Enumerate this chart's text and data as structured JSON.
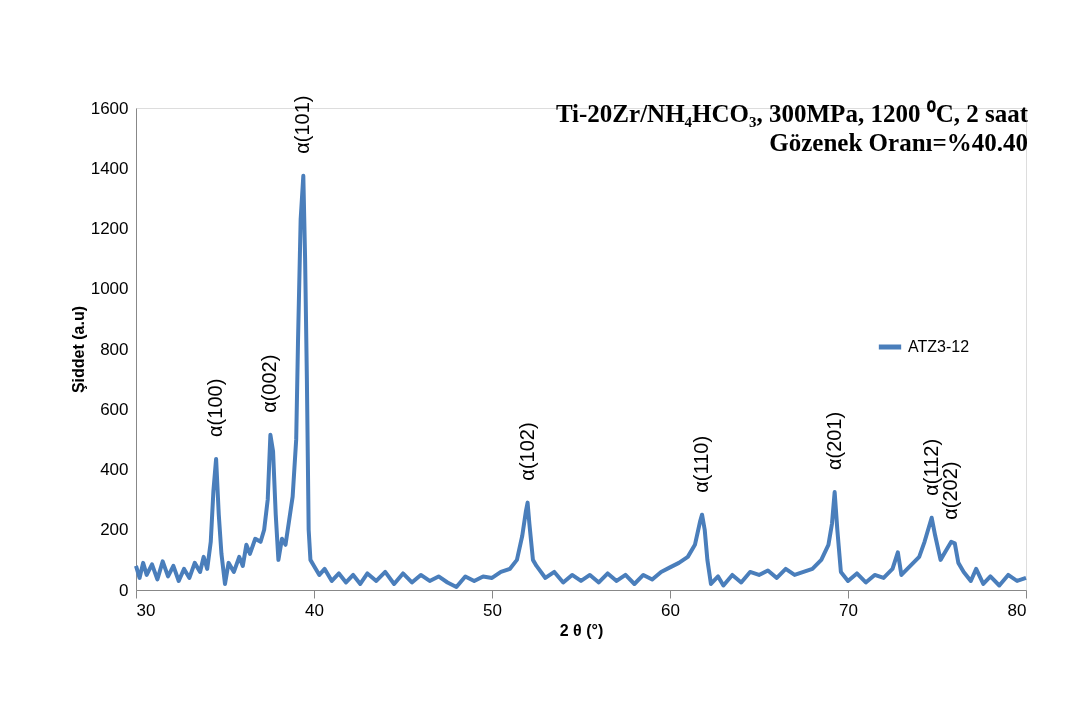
{
  "chart_data": {
    "type": "line",
    "title": "Ti-20Zr/NH₄HCO₃, 300MPa, 1200 ⁰C, 2 saat",
    "subtitle": "Gözenek Oranı=%40.40",
    "xlabel": "2 θ (°)",
    "ylabel": "Şiddet (a.u)",
    "xlim": [
      30,
      80
    ],
    "xticks": [
      30,
      40,
      50,
      60,
      70,
      80
    ],
    "ylim": [
      0,
      1600
    ],
    "yticks": [
      0,
      200,
      400,
      600,
      800,
      1000,
      1200,
      1400,
      1600
    ],
    "grid": false,
    "legend": "right",
    "marker": "none",
    "line_style": "solid",
    "annotations": [
      {
        "text": "α(100)",
        "x": 34.5,
        "y": 435
      },
      {
        "text": "α(002)",
        "x": 37.55,
        "y": 515
      },
      {
        "text": "α(101)",
        "x": 39.4,
        "y": 1375
      },
      {
        "text": "α(102)",
        "x": 52.0,
        "y": 290
      },
      {
        "text": "α(110)",
        "x": 61.8,
        "y": 250
      },
      {
        "text": "α(201)",
        "x": 69.25,
        "y": 325
      },
      {
        "text": "α(112)",
        "x": 74.7,
        "y": 240
      },
      {
        "text": "α(202)",
        "x": 75.8,
        "y": 160
      }
    ],
    "series": [
      {
        "name": "ATZ3-12",
        "color": "#4a7ebb",
        "x": [
          30.0,
          30.2,
          30.4,
          30.6,
          30.9,
          31.2,
          31.5,
          31.8,
          32.1,
          32.4,
          32.7,
          33.0,
          33.3,
          33.6,
          33.8,
          34.0,
          34.2,
          34.35,
          34.5,
          34.65,
          34.8,
          35.0,
          35.2,
          35.5,
          35.8,
          36.0,
          36.2,
          36.4,
          36.7,
          37.0,
          37.2,
          37.4,
          37.55,
          37.7,
          37.85,
          38.0,
          38.2,
          38.4,
          38.6,
          38.8,
          39.0,
          39.1,
          39.25,
          39.4,
          39.5,
          39.6,
          39.7,
          39.8,
          40.0,
          40.3,
          40.6,
          41.0,
          41.4,
          41.8,
          42.2,
          42.6,
          43.0,
          43.5,
          44.0,
          44.5,
          45.0,
          45.5,
          46.0,
          46.5,
          47.0,
          47.5,
          48.0,
          48.5,
          49.0,
          49.5,
          50.0,
          50.5,
          51.0,
          51.4,
          51.7,
          51.9,
          52.0,
          52.1,
          52.3,
          52.5,
          53.0,
          53.5,
          54.0,
          54.5,
          55.0,
          55.5,
          56.0,
          56.5,
          57.0,
          57.5,
          58.0,
          58.5,
          59.0,
          59.5,
          60.0,
          60.5,
          61.0,
          61.4,
          61.7,
          61.8,
          61.95,
          62.1,
          62.3,
          62.7,
          63.0,
          63.5,
          64.0,
          64.5,
          65.0,
          65.5,
          66.0,
          66.5,
          67.0,
          67.5,
          68.0,
          68.5,
          68.9,
          69.1,
          69.25,
          69.4,
          69.6,
          70.0,
          70.5,
          71.0,
          71.5,
          72.0,
          72.5,
          72.8,
          73.0,
          73.5,
          74.0,
          74.3,
          74.6,
          74.7,
          74.9,
          75.2,
          75.5,
          75.8,
          76.0,
          76.2,
          76.5,
          76.9,
          77.2,
          77.6,
          78.0,
          78.5,
          79.0,
          79.5,
          80.0
        ],
        "values": [
          80,
          40,
          90,
          50,
          85,
          35,
          95,
          45,
          80,
          30,
          70,
          40,
          90,
          60,
          110,
          70,
          160,
          330,
          435,
          250,
          120,
          20,
          90,
          60,
          110,
          80,
          150,
          120,
          170,
          160,
          200,
          300,
          515,
          460,
          250,
          100,
          170,
          150,
          230,
          310,
          500,
          820,
          1230,
          1375,
          1100,
          700,
          200,
          100,
          80,
          50,
          70,
          30,
          55,
          25,
          50,
          20,
          55,
          30,
          60,
          20,
          55,
          25,
          50,
          30,
          45,
          25,
          10,
          45,
          30,
          45,
          40,
          60,
          70,
          100,
          180,
          260,
          290,
          220,
          100,
          80,
          40,
          60,
          25,
          50,
          30,
          50,
          25,
          55,
          30,
          50,
          20,
          50,
          35,
          60,
          75,
          90,
          110,
          150,
          230,
          250,
          200,
          100,
          20,
          45,
          15,
          50,
          25,
          60,
          50,
          65,
          40,
          70,
          50,
          60,
          70,
          100,
          150,
          220,
          325,
          200,
          60,
          30,
          55,
          25,
          50,
          40,
          70,
          125,
          50,
          80,
          110,
          160,
          220,
          240,
          180,
          100,
          130,
          160,
          155,
          90,
          60,
          30,
          70,
          20,
          45,
          15,
          50,
          30,
          40
        ]
      }
    ]
  }
}
